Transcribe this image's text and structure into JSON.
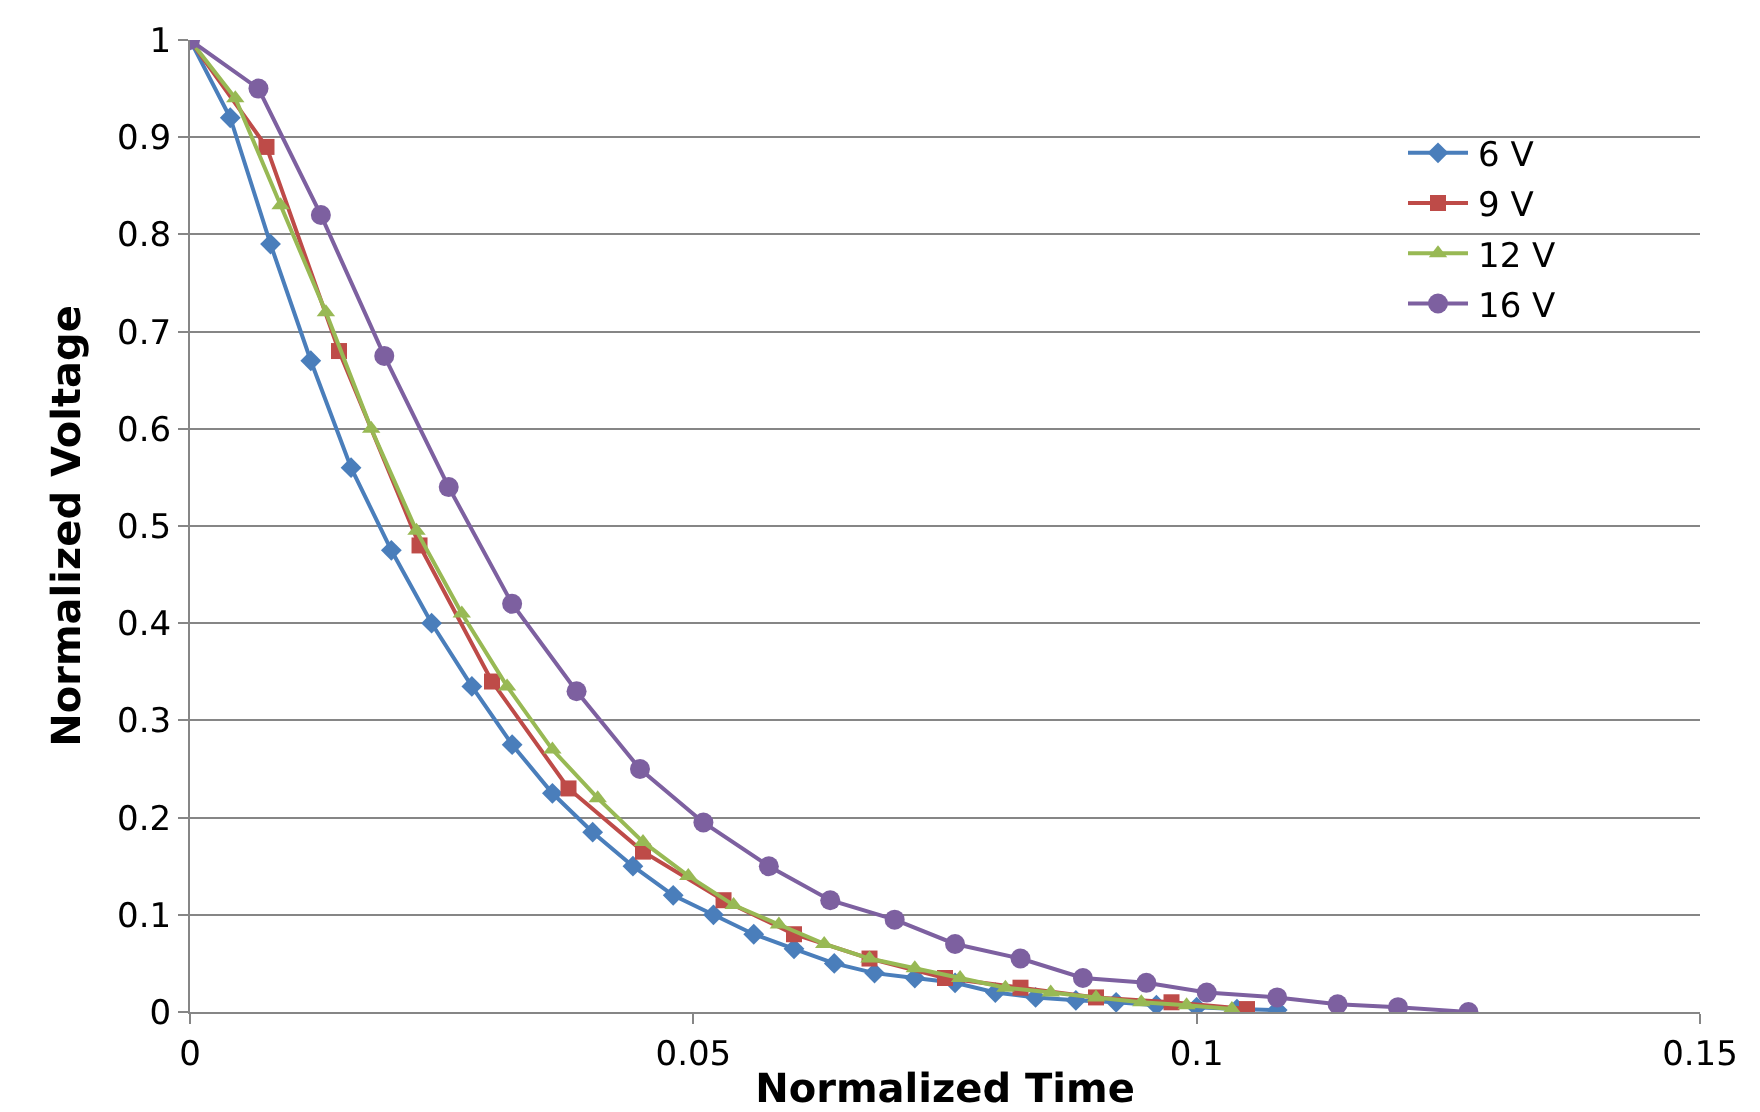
{
  "chart_data": {
    "type": "line",
    "xlabel": "Normalized Time",
    "ylabel": "Normalized Voltage",
    "xlim": [
      0,
      0.15
    ],
    "xticks": [
      0,
      0.05,
      0.1,
      0.15
    ],
    "ylim": [
      0,
      1
    ],
    "yticks": [
      0,
      0.1,
      0.2,
      0.3,
      0.4,
      0.5,
      0.6,
      0.7,
      0.8,
      0.9,
      1
    ],
    "grid": "y",
    "legend": "top right",
    "series": [
      {
        "name": "6 V",
        "color": "#4a7ebb",
        "marker": "diamond",
        "x": [
          0,
          0.004,
          0.008,
          0.012,
          0.016,
          0.02,
          0.024,
          0.028,
          0.032,
          0.036,
          0.04,
          0.044,
          0.048,
          0.052,
          0.056,
          0.06,
          0.064,
          0.068,
          0.072,
          0.076,
          0.08,
          0.084,
          0.088,
          0.092,
          0.096,
          0.1,
          0.104,
          0.108
        ],
        "values": [
          1,
          0.92,
          0.79,
          0.67,
          0.56,
          0.475,
          0.4,
          0.335,
          0.275,
          0.225,
          0.185,
          0.15,
          0.12,
          0.1,
          0.08,
          0.065,
          0.05,
          0.04,
          0.035,
          0.03,
          0.02,
          0.015,
          0.012,
          0.01,
          0.007,
          0.005,
          0.003,
          0.002
        ]
      },
      {
        "name": "9 V",
        "color": "#be4b48",
        "marker": "square",
        "x": [
          0,
          0.0076,
          0.0148,
          0.0228,
          0.03,
          0.0376,
          0.045,
          0.053,
          0.06,
          0.0675,
          0.075,
          0.0825,
          0.09,
          0.0975,
          0.105
        ],
        "values": [
          1,
          0.89,
          0.68,
          0.48,
          0.34,
          0.23,
          0.165,
          0.115,
          0.08,
          0.055,
          0.035,
          0.025,
          0.015,
          0.01,
          0.003
        ]
      },
      {
        "name": "12 V",
        "color": "#98b954",
        "marker": "triangle",
        "x": [
          0,
          0.0045,
          0.009,
          0.0135,
          0.018,
          0.0225,
          0.027,
          0.0315,
          0.036,
          0.0405,
          0.045,
          0.0495,
          0.054,
          0.0585,
          0.063,
          0.0675,
          0.072,
          0.0765,
          0.081,
          0.0855,
          0.09,
          0.0945,
          0.099,
          0.1035
        ],
        "values": [
          1,
          0.94,
          0.83,
          0.72,
          0.6,
          0.495,
          0.41,
          0.335,
          0.27,
          0.22,
          0.175,
          0.14,
          0.11,
          0.09,
          0.07,
          0.055,
          0.045,
          0.035,
          0.025,
          0.02,
          0.015,
          0.01,
          0.007,
          0.003
        ]
      },
      {
        "name": "16 V",
        "color": "#7d60a0",
        "marker": "circle",
        "x": [
          0,
          0.0068,
          0.013,
          0.0193,
          0.0257,
          0.032,
          0.0384,
          0.0447,
          0.051,
          0.0575,
          0.0636,
          0.07,
          0.076,
          0.0825,
          0.0887,
          0.095,
          0.101,
          0.108,
          0.114,
          0.12,
          0.127
        ],
        "values": [
          1,
          0.95,
          0.82,
          0.675,
          0.54,
          0.42,
          0.33,
          0.25,
          0.195,
          0.15,
          0.115,
          0.095,
          0.07,
          0.055,
          0.035,
          0.03,
          0.02,
          0.015,
          0.008,
          0.005,
          0
        ]
      }
    ]
  }
}
